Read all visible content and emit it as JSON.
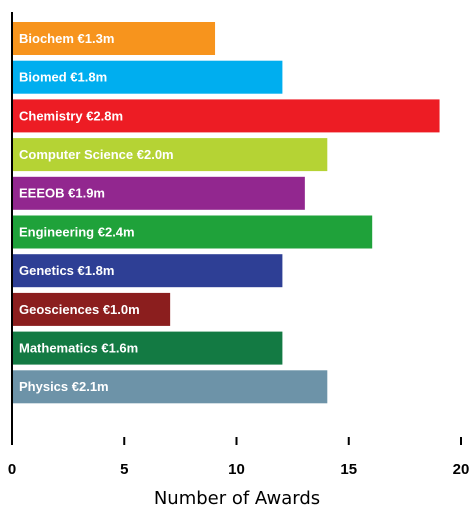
{
  "chart_data": {
    "type": "barh",
    "categories": [
      "Biochem €1.3m",
      "Biomed €1.8m",
      "Chemistry €2.8m",
      "Computer Science €2.0m",
      "EEEOB €1.9m",
      "Engineering €2.4m",
      "Genetics €1.8m",
      "Geosciences €1.0m",
      "Mathematics €1.6m",
      "Physics €2.1m"
    ],
    "values": [
      9,
      12,
      19,
      14,
      13,
      16,
      12,
      7,
      12,
      14
    ],
    "colors": [
      "#f7941d",
      "#00aeef",
      "#ed1c24",
      "#b5d334",
      "#92278f",
      "#1fa23a",
      "#2e3f95",
      "#8b1e1e",
      "#137a43",
      "#6d93a8"
    ],
    "xlabel": "Number of Awards",
    "xlim": [
      0,
      20
    ],
    "xticks": [
      0,
      5,
      10,
      15,
      20
    ]
  }
}
